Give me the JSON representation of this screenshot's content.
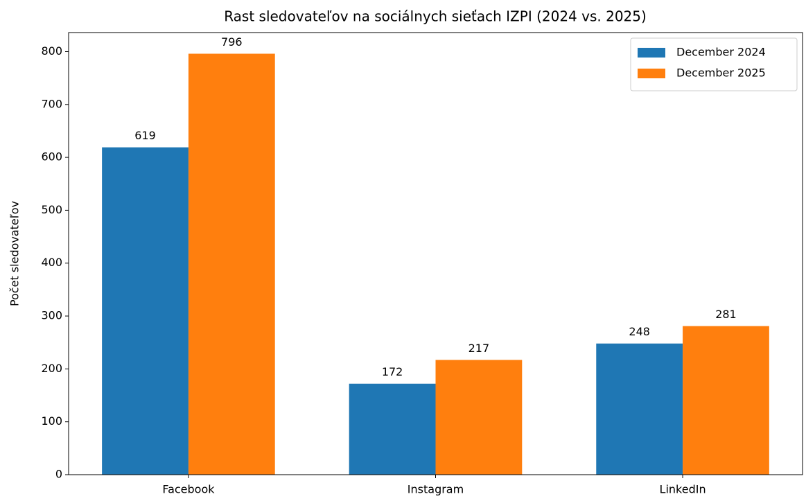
{
  "chart_data": {
    "type": "bar",
    "title": "Rast sledovateľov na sociálnych sieťach IZPI (2024 vs. 2025)",
    "ylabel": "Počet sledovateľov",
    "categories": [
      "Facebook",
      "Instagram",
      "LinkedIn"
    ],
    "series": [
      {
        "name": "December 2024",
        "color": "#1f77b4",
        "values": [
          619,
          172,
          248
        ]
      },
      {
        "name": "December 2025",
        "color": "#ff7f0e",
        "values": [
          796,
          217,
          281
        ]
      }
    ],
    "ylim": [
      0,
      836
    ],
    "yticks": [
      0,
      100,
      200,
      300,
      400,
      500,
      600,
      700,
      800
    ],
    "legend": "upper right",
    "grid": false
  }
}
